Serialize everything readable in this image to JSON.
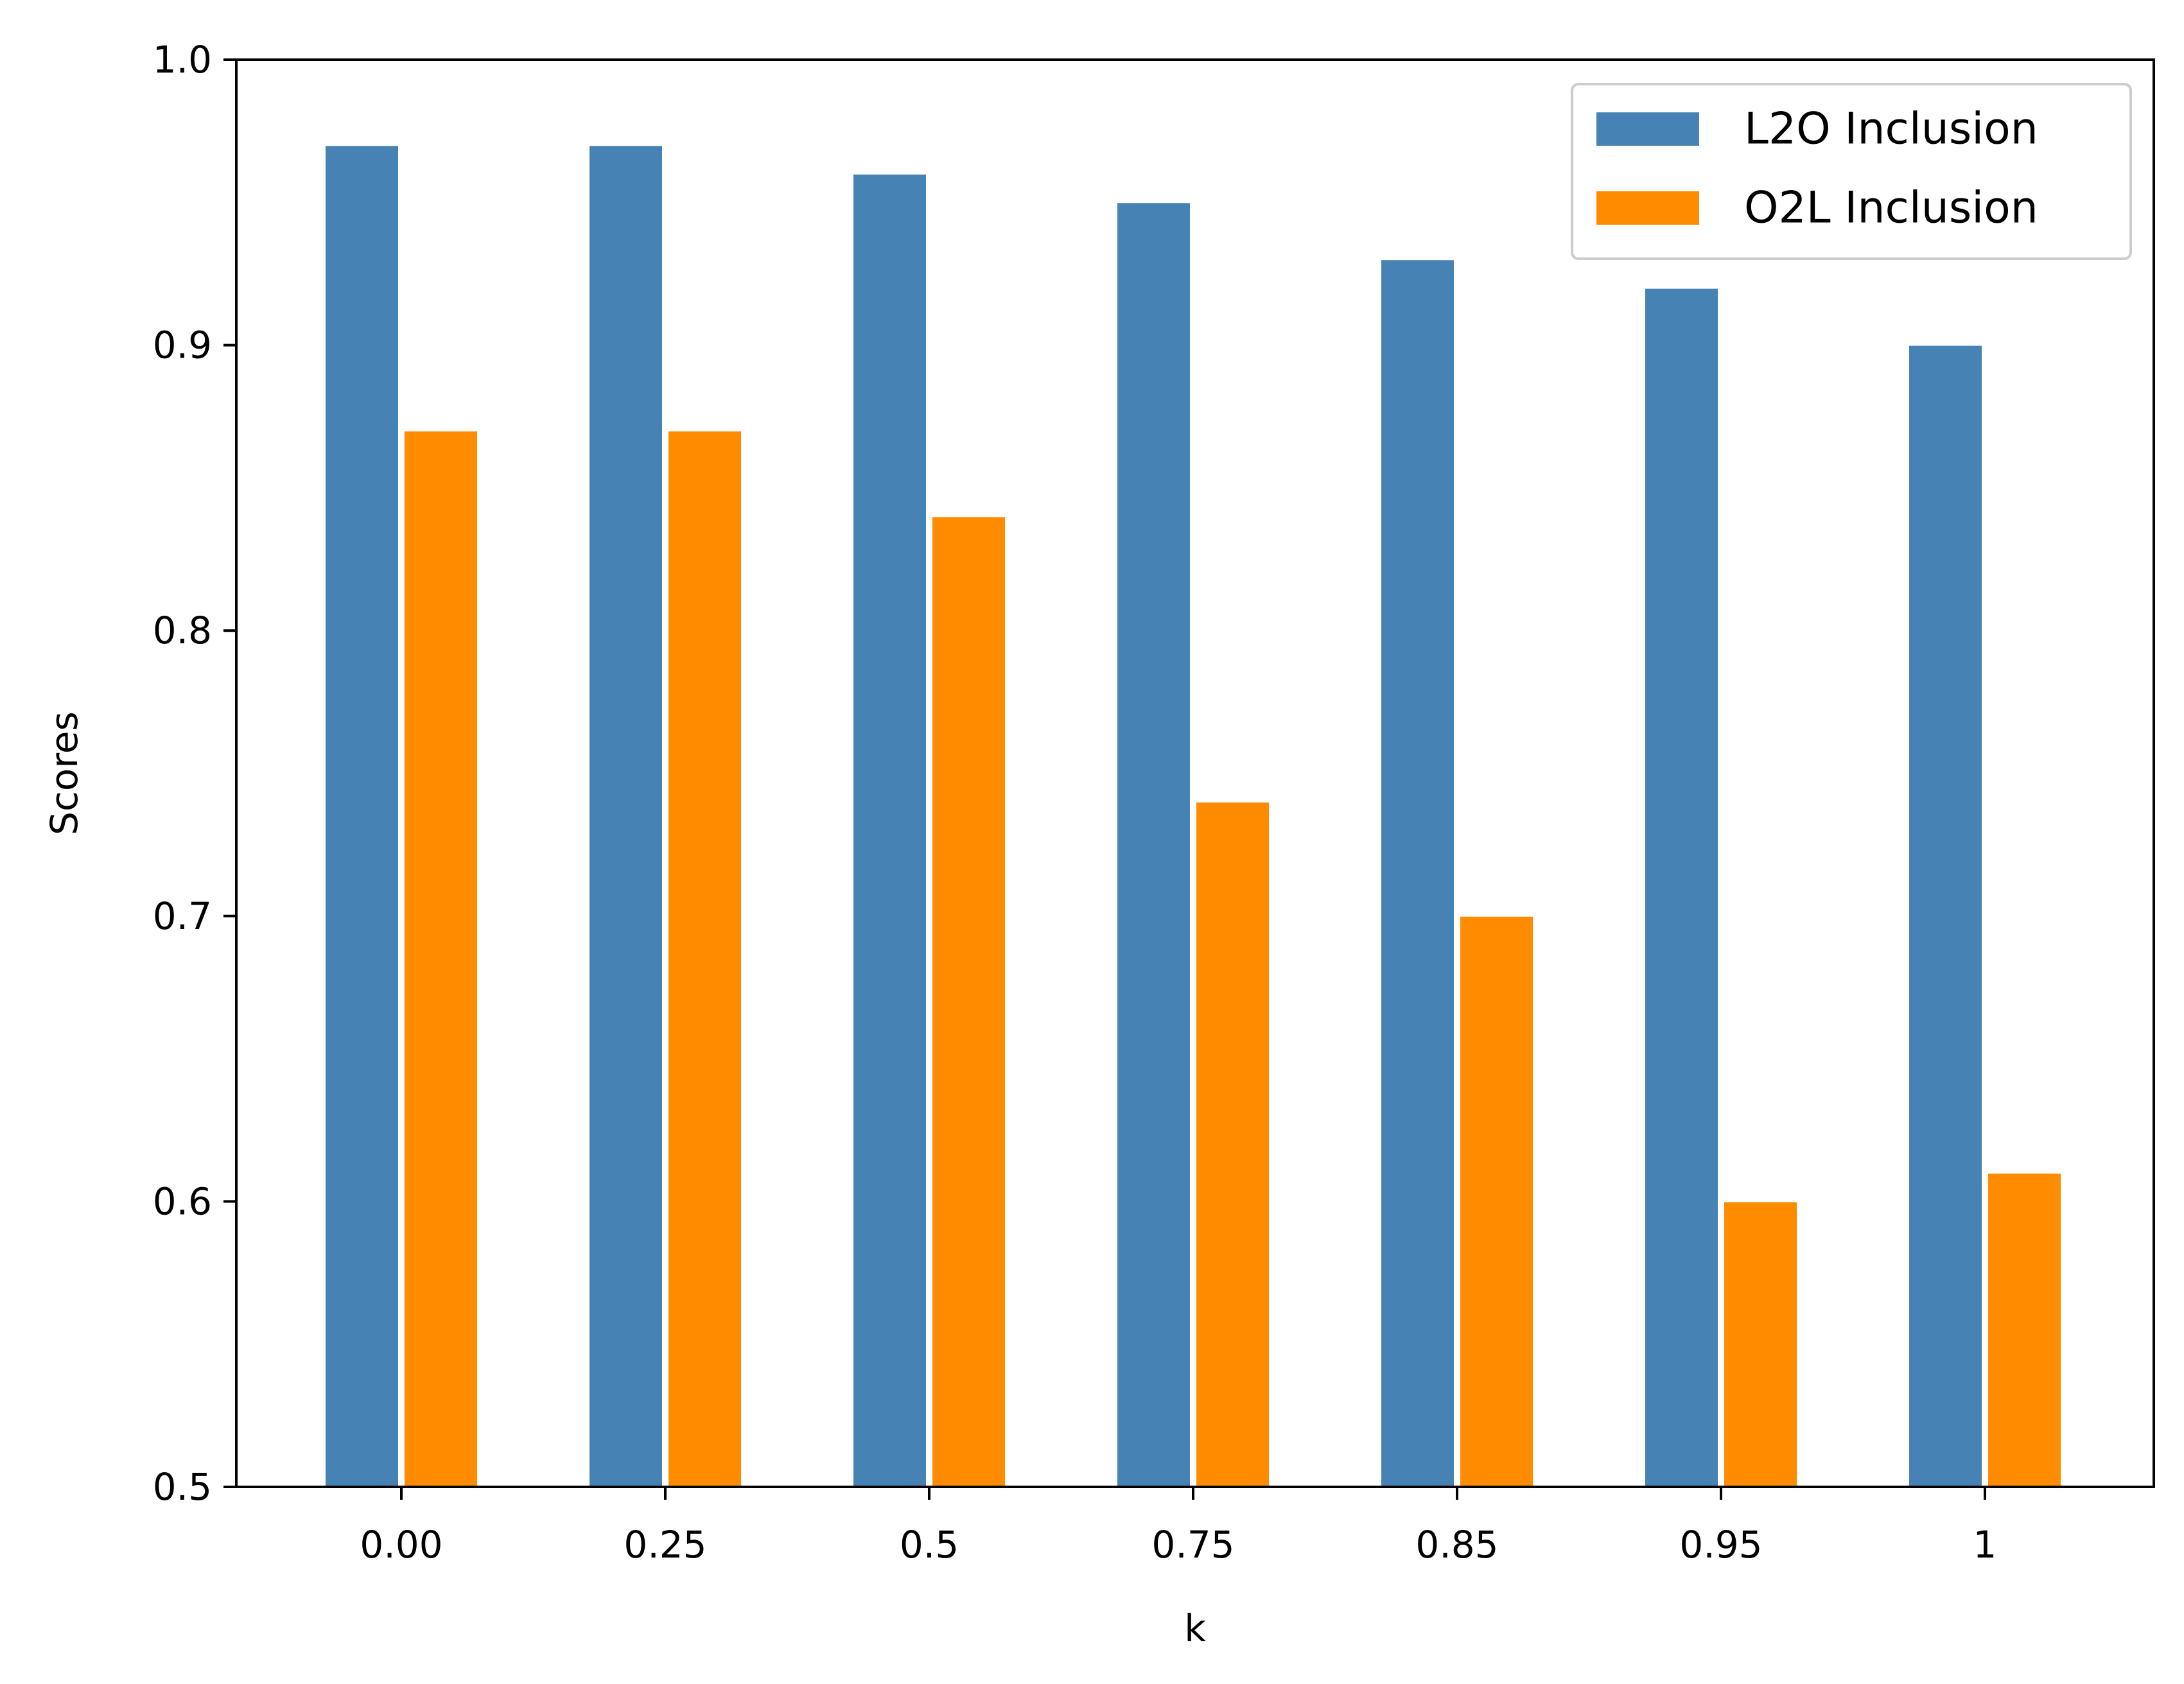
{
  "chart_data": {
    "type": "bar",
    "categories": [
      "0.00",
      "0.25",
      "0.5",
      "0.75",
      "0.85",
      "0.95",
      "1"
    ],
    "series": [
      {
        "name": "L2O Inclusion",
        "values": [
          0.97,
          0.97,
          0.96,
          0.95,
          0.93,
          0.92,
          0.9
        ],
        "color": "#4682b4"
      },
      {
        "name": "O2L Inclusion",
        "values": [
          0.87,
          0.87,
          0.84,
          0.74,
          0.7,
          0.6,
          0.61
        ],
        "color": "#ff8c00"
      }
    ],
    "xlabel": "k",
    "ylabel": "Scores",
    "ylim": [
      0.5,
      1.0
    ],
    "yticks": [
      "0.5",
      "0.6",
      "0.7",
      "0.8",
      "0.9",
      "1.0"
    ],
    "grid": false,
    "legend_position": "top-right"
  }
}
